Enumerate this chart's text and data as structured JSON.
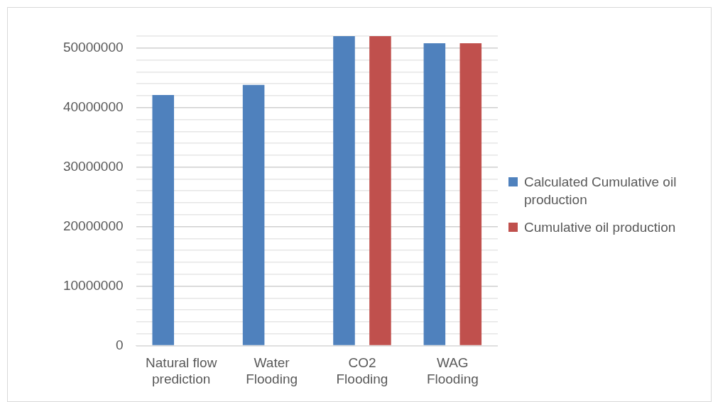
{
  "chart_data": {
    "type": "bar",
    "categories": [
      "Natural flow prediction",
      "Water Flooding",
      "CO2 Flooding",
      "WAG Flooding"
    ],
    "series": [
      {
        "name": "Calculated Cumulative oil production",
        "color": "#4f81bd",
        "values": [
          42100000,
          43800000,
          52000000,
          50800000
        ]
      },
      {
        "name": "Cumulative oil production",
        "color": "#c0504d",
        "values": [
          null,
          null,
          52000000,
          50800000
        ]
      }
    ],
    "ylim": [
      0,
      52000000
    ],
    "yticks": [
      0,
      {
        "value": 2000000,
        "label": null
      },
      {
        "value": 4000000,
        "label": null
      },
      {
        "value": 6000000,
        "label": null
      },
      {
        "value": 8000000,
        "label": null
      },
      10000000,
      {
        "value": 12000000,
        "label": null
      },
      {
        "value": 14000000,
        "label": null
      },
      {
        "value": 16000000,
        "label": null
      },
      {
        "value": 18000000,
        "label": null
      },
      20000000,
      {
        "value": 22000000,
        "label": null
      },
      {
        "value": 24000000,
        "label": null
      },
      {
        "value": 26000000,
        "label": null
      },
      {
        "value": 28000000,
        "label": null
      },
      30000000,
      {
        "value": 32000000,
        "label": null
      },
      {
        "value": 34000000,
        "label": null
      },
      {
        "value": 36000000,
        "label": null
      },
      {
        "value": 38000000,
        "label": null
      },
      40000000,
      {
        "value": 42000000,
        "label": null
      },
      {
        "value": 44000000,
        "label": null
      },
      {
        "value": 46000000,
        "label": null
      },
      {
        "value": 48000000,
        "label": null
      },
      50000000,
      {
        "value": 52000000,
        "label": null
      }
    ],
    "grid": "y",
    "legend": "right"
  }
}
